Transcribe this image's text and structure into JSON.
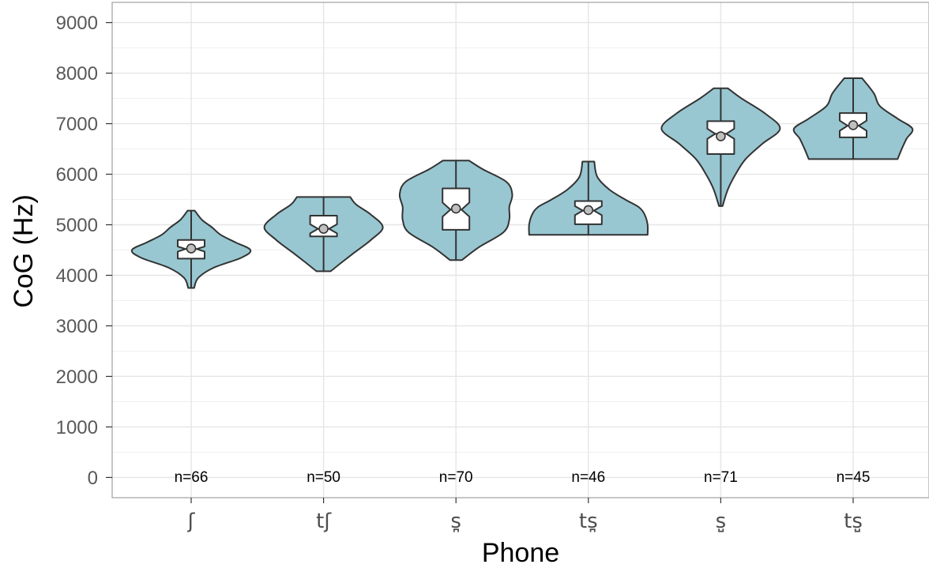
{
  "chart_data": {
    "type": "violin",
    "xlabel": "Phone",
    "ylabel": "CoG (Hz)",
    "ylim": [
      -400,
      9400
    ],
    "y_ticks": [
      0,
      1000,
      2000,
      3000,
      4000,
      5000,
      6000,
      7000,
      8000,
      9000
    ],
    "y_tick_labels": [
      "0",
      "1000",
      "2000",
      "3000",
      "4000",
      "5000",
      "6000",
      "7000",
      "8000",
      "9000"
    ],
    "grid": true,
    "categories": [
      "ʃ",
      "tʃ",
      "s̪",
      "ts̪",
      "s̺",
      "ts̺"
    ],
    "counts": [
      "n=66",
      "n=50",
      "n=70",
      "n=46",
      "n=71",
      "n=45"
    ],
    "colors": {
      "violin_fill": "#92c4cf",
      "violin_stroke": "#333333",
      "box_fill": "#ffffff",
      "mean_point": "#bfbfbf",
      "grid": "#e5e5e5"
    },
    "groups": [
      {
        "label": "ʃ",
        "n": 66,
        "min": 3750,
        "max": 5280,
        "q1": 4330,
        "median": 4520,
        "q3": 4700,
        "notch": [
          4470,
          4570
        ],
        "mean": 4530,
        "density": [
          [
            3750,
            0.05
          ],
          [
            3950,
            0.12
          ],
          [
            4150,
            0.38
          ],
          [
            4350,
            0.85
          ],
          [
            4500,
            1.0
          ],
          [
            4650,
            0.75
          ],
          [
            4800,
            0.5
          ],
          [
            4950,
            0.35
          ],
          [
            5100,
            0.18
          ],
          [
            5280,
            0.06
          ]
        ]
      },
      {
        "label": "tʃ",
        "n": 50,
        "min": 4080,
        "max": 5550,
        "q1": 4770,
        "median": 4920,
        "q3": 5180,
        "notch": [
          4830,
          5010
        ],
        "mean": 4920,
        "density": [
          [
            4080,
            0.12
          ],
          [
            4250,
            0.3
          ],
          [
            4450,
            0.52
          ],
          [
            4700,
            0.8
          ],
          [
            4950,
            1.0
          ],
          [
            5200,
            0.8
          ],
          [
            5400,
            0.55
          ],
          [
            5550,
            0.45
          ]
        ]
      },
      {
        "label": "s̪",
        "n": 70,
        "min": 4300,
        "max": 6270,
        "q1": 4900,
        "median": 5300,
        "q3": 5720,
        "notch": [
          5160,
          5440
        ],
        "mean": 5320,
        "density": [
          [
            4300,
            0.1
          ],
          [
            4550,
            0.38
          ],
          [
            4850,
            0.8
          ],
          [
            5100,
            0.9
          ],
          [
            5350,
            0.9
          ],
          [
            5600,
            0.95
          ],
          [
            5850,
            0.85
          ],
          [
            6100,
            0.45
          ],
          [
            6270,
            0.22
          ]
        ]
      },
      {
        "label": "ts̪",
        "n": 46,
        "min": 4800,
        "max": 6250,
        "q1": 5010,
        "median": 5280,
        "q3": 5470,
        "notch": [
          5190,
          5370
        ],
        "mean": 5290,
        "density": [
          [
            4800,
            1.0
          ],
          [
            5000,
            1.0
          ],
          [
            5200,
            0.95
          ],
          [
            5350,
            0.85
          ],
          [
            5500,
            0.62
          ],
          [
            5700,
            0.35
          ],
          [
            5950,
            0.15
          ],
          [
            6250,
            0.1
          ]
        ]
      },
      {
        "label": "s̺",
        "n": 71,
        "min": 5370,
        "max": 7700,
        "q1": 6400,
        "median": 6800,
        "q3": 7050,
        "notch": [
          6700,
          6900
        ],
        "mean": 6750,
        "density": [
          [
            5370,
            0.03
          ],
          [
            5700,
            0.12
          ],
          [
            6000,
            0.25
          ],
          [
            6300,
            0.42
          ],
          [
            6600,
            0.7
          ],
          [
            6900,
            1.0
          ],
          [
            7200,
            0.75
          ],
          [
            7500,
            0.35
          ],
          [
            7700,
            0.12
          ]
        ]
      },
      {
        "label": "ts̺",
        "n": 45,
        "min": 6300,
        "max": 7900,
        "q1": 6730,
        "median": 6960,
        "q3": 7210,
        "notch": [
          6860,
          7060
        ],
        "mean": 6970,
        "density": [
          [
            6300,
            0.75
          ],
          [
            6500,
            0.82
          ],
          [
            6700,
            0.9
          ],
          [
            6900,
            1.0
          ],
          [
            7100,
            0.75
          ],
          [
            7350,
            0.45
          ],
          [
            7600,
            0.35
          ],
          [
            7900,
            0.15
          ]
        ]
      }
    ]
  }
}
